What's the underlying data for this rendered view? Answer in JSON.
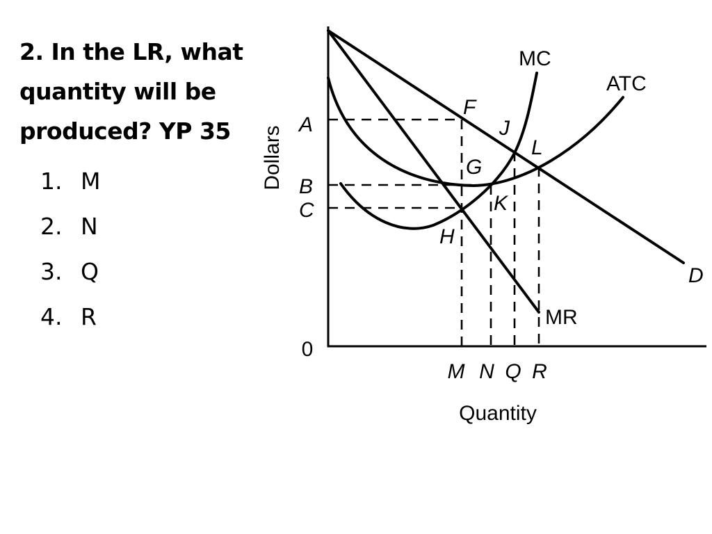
{
  "question": {
    "lines": [
      "2. In the LR, what",
      "quantity will be",
      "produced? YP 35"
    ]
  },
  "options": [
    {
      "num": "1.",
      "label": "M"
    },
    {
      "num": "2.",
      "label": "N"
    },
    {
      "num": "3.",
      "label": "Q"
    },
    {
      "num": "4.",
      "label": "R"
    }
  ],
  "diagram": {
    "y_axis_label": "Dollars",
    "x_axis_label": "Quantity",
    "origin_label": "0",
    "price_labels": {
      "a": "A",
      "b": "B",
      "c": "C"
    },
    "quantity_labels": {
      "m": "M",
      "n": "N",
      "q": "Q",
      "r": "R"
    },
    "point_labels": {
      "f": "F",
      "g": "G",
      "h": "H",
      "j": "J",
      "k": "K",
      "l": "L"
    },
    "curve_labels": {
      "mc": "MC",
      "atc": "ATC",
      "d": "D",
      "mr": "MR"
    }
  }
}
